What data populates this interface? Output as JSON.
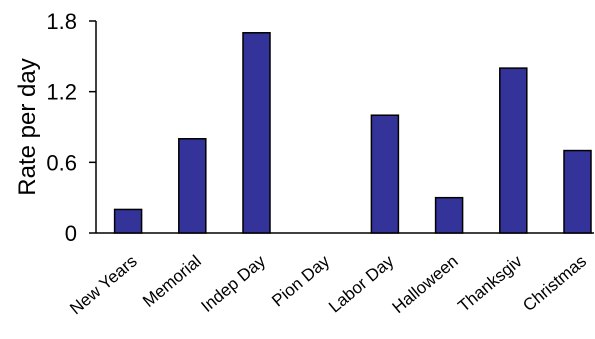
{
  "chart_data": {
    "type": "bar",
    "title": "",
    "xlabel": "",
    "ylabel": "Rate per day",
    "categories": [
      "New Years",
      "Memorial",
      "Indep Day",
      "Pion Day",
      "Labor Day",
      "Halloween",
      "Thanksgiv",
      "Christmas"
    ],
    "values": [
      0.2,
      0.8,
      1.7,
      0,
      1.0,
      0.3,
      1.4,
      0.7
    ],
    "ylim": [
      0,
      1.8
    ],
    "yticks": [
      "0",
      "0.6",
      "1.2",
      "1.8"
    ],
    "grid": false,
    "legend": "none",
    "bar_color": "#333399",
    "bar_edge_color": "#000000"
  }
}
